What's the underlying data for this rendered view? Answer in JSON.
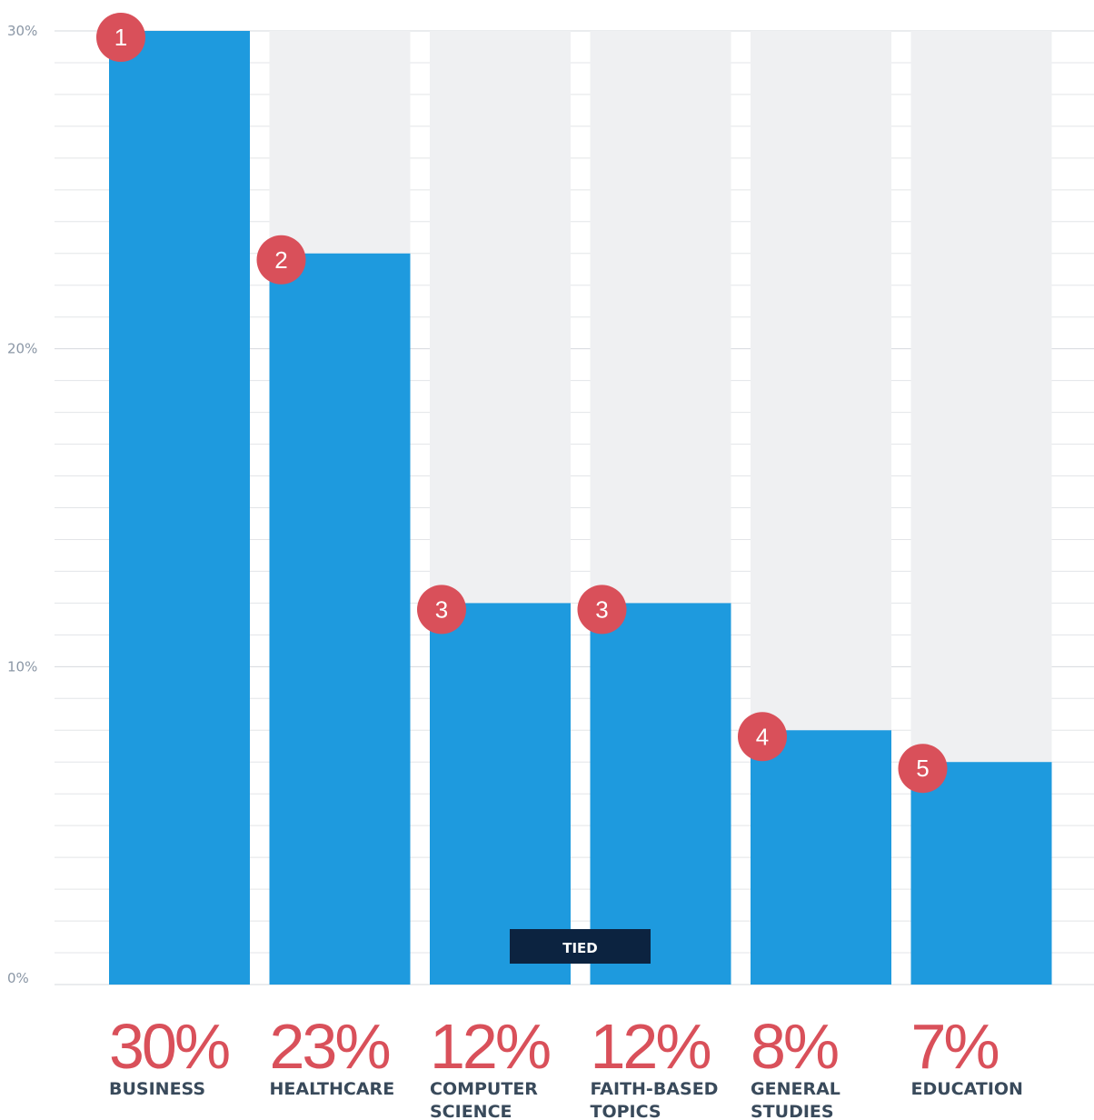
{
  "chart_data": {
    "type": "bar",
    "categories": [
      [
        "BUSINESS"
      ],
      [
        "HEALTHCARE"
      ],
      [
        "COMPUTER",
        "SCIENCE"
      ],
      [
        "FAITH-BASED",
        "TOPICS"
      ],
      [
        "GENERAL",
        "STUDIES"
      ],
      [
        "EDUCATION"
      ]
    ],
    "values": [
      30,
      23,
      12,
      12,
      8,
      7
    ],
    "value_labels": [
      "30%",
      "23%",
      "12%",
      "12%",
      "8%",
      "7%"
    ],
    "ranks": [
      "1",
      "2",
      "3",
      "3",
      "4",
      "5"
    ],
    "ylim": [
      0,
      30
    ],
    "yticks": [
      {
        "value": 0,
        "label": "0%"
      },
      {
        "value": 10,
        "label": "10%"
      },
      {
        "value": 20,
        "label": "20%"
      },
      {
        "value": 30,
        "label": "30%"
      }
    ],
    "annotation": "TIED",
    "grid": true,
    "colors": {
      "bar": "#1e9ade",
      "track": "#eff0f2",
      "badge": "#d9505a",
      "value_label": "#d9505a",
      "category_label": "#394a5b",
      "tied_box": "#0c2340",
      "gridline": "#e3e5e8",
      "tick_label": "#8b97a6"
    }
  }
}
